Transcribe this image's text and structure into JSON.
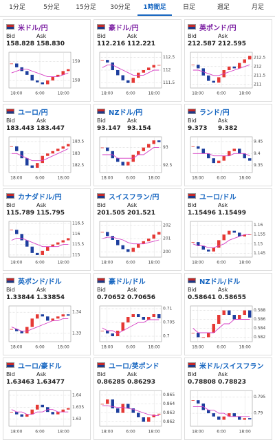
{
  "tabs": [
    "1分足",
    "5分足",
    "15分足",
    "30分足",
    "1時間足",
    "日足",
    "週足",
    "月足"
  ],
  "selected_tab": 4,
  "labels": {
    "bid": "Bid",
    "ask": "Ask"
  },
  "cards": [
    {
      "pair": "米ドル/円",
      "bid": "158.828",
      "ask": "158.830",
      "chart": {
        "type": "candlestick",
        "ylim": [
          157.6,
          159.5
        ],
        "yticks": [
          158,
          159
        ],
        "xticks": [
          "18:00",
          "6:00",
          "18:00"
        ],
        "close": [
          158.9,
          158.7,
          158.5,
          158.3,
          158.0,
          157.9,
          157.8,
          158.0,
          158.2,
          158.3,
          158.5,
          158.6
        ],
        "ma": [
          158.4,
          158.5,
          158.6,
          158.6,
          158.5,
          158.4,
          158.3,
          158.2,
          158.2,
          158.2,
          158.3,
          158.4
        ]
      }
    },
    {
      "pair": "豪ドル/円",
      "bid": "112.216",
      "ask": "112.221",
      "chart": {
        "type": "candlestick",
        "ylim": [
          111.3,
          112.7
        ],
        "yticks": [
          111.5,
          112,
          112.5
        ],
        "xticks": [
          "18:00",
          "6:00",
          "18:00"
        ],
        "close": [
          112.4,
          112.3,
          112.0,
          111.8,
          111.6,
          111.5,
          111.7,
          111.9,
          112.0,
          112.1,
          112.2,
          112.2
        ],
        "ma": [
          112.1,
          112.2,
          112.2,
          112.1,
          112.0,
          111.9,
          111.8,
          111.8,
          111.8,
          111.9,
          112.0,
          112.0
        ]
      }
    },
    {
      "pair": "英ポンド/円",
      "bid": "212.587",
      "ask": "212.595",
      "chart": {
        "type": "candlestick",
        "ylim": [
          210.8,
          212.8
        ],
        "yticks": [
          211,
          211.5,
          212,
          212.5
        ],
        "xticks": [
          "18:00",
          "6:00",
          "18:00"
        ],
        "close": [
          212.1,
          211.9,
          211.5,
          211.2,
          211.1,
          211.4,
          211.8,
          212.0,
          211.9,
          212.2,
          212.4,
          212.6
        ],
        "ma": [
          211.8,
          211.8,
          211.7,
          211.6,
          211.5,
          211.5,
          211.6,
          211.7,
          211.8,
          211.9,
          212.0,
          212.1
        ]
      }
    },
    {
      "pair": "ユーロ/円",
      "bid": "183.443",
      "ask": "183.447",
      "chart": {
        "type": "candlestick",
        "ylim": [
          182.2,
          183.7
        ],
        "yticks": [
          182.5,
          183,
          183.5
        ],
        "xticks": [
          "18:00",
          "6:00",
          "18:00"
        ],
        "close": [
          183.3,
          183.1,
          182.8,
          182.5,
          182.4,
          182.6,
          182.9,
          183.0,
          183.1,
          183.2,
          183.3,
          183.4
        ],
        "ma": [
          183.0,
          183.0,
          182.9,
          182.8,
          182.7,
          182.7,
          182.7,
          182.8,
          182.9,
          183.0,
          183.1,
          183.2
        ]
      }
    },
    {
      "pair": "NZドル/円",
      "bid": "93.147",
      "ask": "93.154",
      "chart": {
        "type": "candlestick",
        "ylim": [
          92.3,
          93.3
        ],
        "yticks": [
          92.5,
          93
        ],
        "xticks": [
          "18:00",
          "6:00",
          "18:00"
        ],
        "close": [
          93.0,
          92.9,
          92.7,
          92.6,
          92.5,
          92.6,
          92.8,
          92.9,
          93.0,
          93.1,
          93.2,
          93.15
        ],
        "ma": [
          92.8,
          92.8,
          92.8,
          92.7,
          92.7,
          92.7,
          92.7,
          92.8,
          92.8,
          92.9,
          93.0,
          93.0
        ]
      }
    },
    {
      "pair": "ランド/円",
      "bid": "9.373",
      "ask": "9.382",
      "chart": {
        "type": "candlestick",
        "ylim": [
          9.32,
          9.47
        ],
        "yticks": [
          9.35,
          9.4,
          9.45
        ],
        "xticks": [
          "18:00",
          "6:00",
          "18:00"
        ],
        "close": [
          9.43,
          9.42,
          9.4,
          9.38,
          9.36,
          9.37,
          9.39,
          9.41,
          9.42,
          9.4,
          9.38,
          9.37
        ],
        "ma": [
          9.4,
          9.4,
          9.4,
          9.4,
          9.39,
          9.39,
          9.39,
          9.39,
          9.4,
          9.4,
          9.4,
          9.39
        ]
      }
    },
    {
      "pair": "カナダドル/円",
      "bid": "115.789",
      "ask": "115.795",
      "chart": {
        "type": "candlestick",
        "ylim": [
          114.9,
          116.6
        ],
        "yticks": [
          115,
          115.5,
          116,
          116.5
        ],
        "xticks": [
          "18:00",
          "6:00",
          "18:00"
        ],
        "close": [
          116.2,
          116.0,
          115.7,
          115.4,
          115.1,
          115.0,
          115.2,
          115.4,
          115.5,
          115.6,
          115.7,
          115.8
        ],
        "ma": [
          115.7,
          115.8,
          115.8,
          115.7,
          115.6,
          115.5,
          115.4,
          115.4,
          115.4,
          115.4,
          115.5,
          115.5
        ]
      }
    },
    {
      "pair": "スイスフラン/円",
      "bid": "201.505",
      "ask": "201.521",
      "chart": {
        "type": "candlestick",
        "ylim": [
          199.6,
          202.3
        ],
        "yticks": [
          200,
          201,
          202
        ],
        "xticks": [
          "18:00",
          "6:00",
          "18:00"
        ],
        "close": [
          201.5,
          201.2,
          200.9,
          200.5,
          200.2,
          200.0,
          200.3,
          200.6,
          200.8,
          201.0,
          201.3,
          201.5
        ],
        "ma": [
          201.0,
          201.1,
          201.1,
          201.0,
          200.9,
          200.7,
          200.6,
          200.6,
          200.6,
          200.7,
          200.8,
          200.9
        ]
      }
    },
    {
      "pair": "ユーロ/ドル",
      "bid": "1.15496",
      "ask": "1.15499",
      "chart": {
        "type": "candlestick",
        "ylim": [
          1.143,
          1.162
        ],
        "yticks": [
          1.145,
          1.15,
          1.155,
          1.16
        ],
        "xticks": [
          "18:00",
          "6:00",
          "18:00"
        ],
        "close": [
          1.151,
          1.149,
          1.147,
          1.146,
          1.148,
          1.152,
          1.155,
          1.157,
          1.156,
          1.154,
          1.155,
          1.155
        ],
        "ma": [
          1.15,
          1.149,
          1.149,
          1.148,
          1.148,
          1.149,
          1.15,
          1.152,
          1.153,
          1.154,
          1.155,
          1.155
        ]
      }
    },
    {
      "pair": "英ポンド/ドル",
      "bid": "1.33844",
      "ask": "1.33854",
      "chart": {
        "type": "candlestick",
        "ylim": [
          1.326,
          1.343
        ],
        "yticks": [
          1.33,
          1.34
        ],
        "xticks": [
          "18:00",
          "6:00",
          "18:00"
        ],
        "close": [
          1.332,
          1.331,
          1.33,
          1.333,
          1.337,
          1.339,
          1.338,
          1.336,
          1.337,
          1.338,
          1.339,
          1.3384
        ],
        "ma": [
          1.333,
          1.332,
          1.331,
          1.331,
          1.332,
          1.333,
          1.334,
          1.335,
          1.336,
          1.336,
          1.337,
          1.337
        ]
      }
    },
    {
      "pair": "豪ドル/ドル",
      "bid": "0.70652",
      "ask": "0.70656",
      "chart": {
        "type": "candlestick",
        "ylim": [
          0.698,
          0.711
        ],
        "yticks": [
          0.7,
          0.705,
          0.71
        ],
        "xticks": [
          "18:00",
          "6:00",
          "18:00"
        ],
        "close": [
          0.702,
          0.701,
          0.7,
          0.702,
          0.705,
          0.707,
          0.708,
          0.707,
          0.706,
          0.707,
          0.708,
          0.7065
        ],
        "ma": [
          0.703,
          0.702,
          0.702,
          0.701,
          0.702,
          0.703,
          0.704,
          0.705,
          0.705,
          0.706,
          0.706,
          0.706
        ]
      }
    },
    {
      "pair": "NZドル/ドル",
      "bid": "0.58641",
      "ask": "0.58655",
      "chart": {
        "type": "candlestick",
        "ylim": [
          0.581,
          0.589
        ],
        "yticks": [
          0.582,
          0.584,
          0.586,
          0.588
        ],
        "xticks": [
          "18:00",
          "6:00",
          "18:00"
        ],
        "close": [
          0.583,
          0.582,
          0.582,
          0.583,
          0.585,
          0.587,
          0.588,
          0.587,
          0.586,
          0.587,
          0.588,
          0.5864
        ],
        "ma": [
          0.584,
          0.583,
          0.583,
          0.583,
          0.583,
          0.584,
          0.585,
          0.585,
          0.586,
          0.586,
          0.586,
          0.586
        ]
      }
    },
    {
      "pair": "ユーロ/豪ドル",
      "bid": "1.63463",
      "ask": "1.63477",
      "chart": {
        "type": "candlestick",
        "ylim": [
          1.627,
          1.642
        ],
        "yticks": [
          1.63,
          1.635,
          1.64
        ],
        "xticks": [
          "18:00",
          "6:00",
          "18:00"
        ],
        "close": [
          1.633,
          1.632,
          1.631,
          1.632,
          1.634,
          1.636,
          1.635,
          1.633,
          1.632,
          1.633,
          1.634,
          1.6346
        ],
        "ma": [
          1.634,
          1.633,
          1.633,
          1.632,
          1.632,
          1.633,
          1.633,
          1.634,
          1.634,
          1.633,
          1.633,
          1.633
        ]
      }
    },
    {
      "pair": "ユーロ/英ポンド",
      "bid": "0.86285",
      "ask": "0.86293",
      "chart": {
        "type": "candlestick",
        "ylim": [
          0.8615,
          0.8655
        ],
        "yticks": [
          0.862,
          0.863,
          0.864,
          0.865
        ],
        "xticks": [
          "18:00",
          "6:00",
          "18:00"
        ],
        "close": [
          0.864,
          0.8645,
          0.8635,
          0.863,
          0.864,
          0.8635,
          0.863,
          0.8625,
          0.862,
          0.8625,
          0.8628,
          0.8629
        ],
        "ma": [
          0.8638,
          0.8638,
          0.8637,
          0.8636,
          0.8636,
          0.8635,
          0.8634,
          0.8632,
          0.863,
          0.8628,
          0.8627,
          0.8627
        ]
      }
    },
    {
      "pair": "米ドル/スイスフラン",
      "bid": "0.78808",
      "ask": "0.78823",
      "chart": {
        "type": "candlestick",
        "ylim": [
          0.786,
          0.797
        ],
        "yticks": [
          0.79,
          0.795
        ],
        "xticks": [
          "18:00",
          "6:00",
          "18:00"
        ],
        "close": [
          0.794,
          0.793,
          0.791,
          0.79,
          0.789,
          0.788,
          0.789,
          0.79,
          0.789,
          0.788,
          0.7885,
          0.7881
        ],
        "ma": [
          0.792,
          0.792,
          0.792,
          0.791,
          0.791,
          0.79,
          0.79,
          0.789,
          0.789,
          0.789,
          0.789,
          0.789
        ]
      }
    }
  ]
}
